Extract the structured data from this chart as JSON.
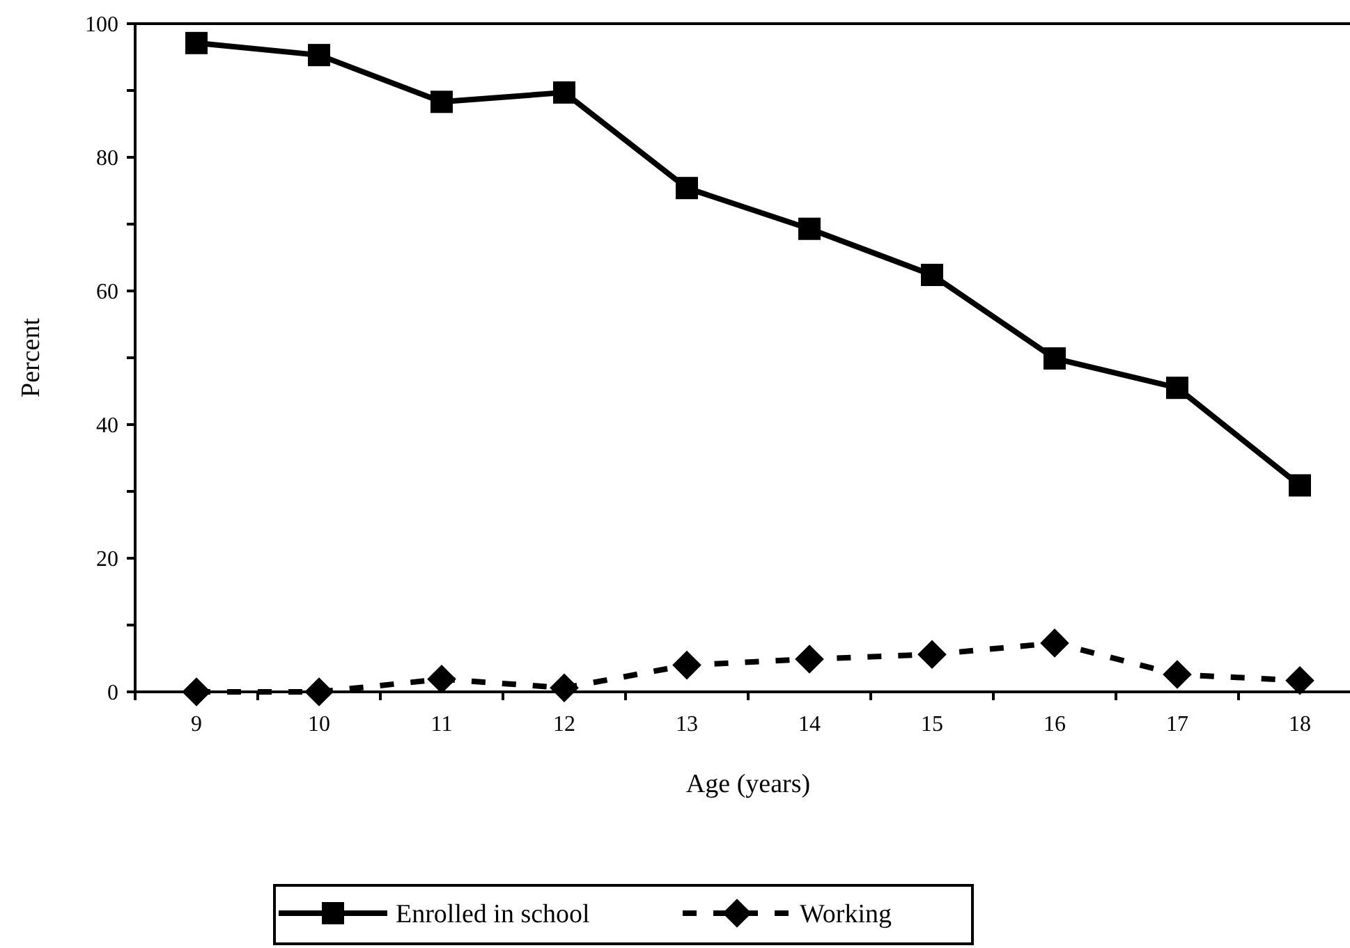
{
  "chart_data": {
    "type": "line",
    "xlabel": "Age (years)",
    "ylabel": "Percent",
    "categories": [
      "9",
      "10",
      "11",
      "12",
      "13",
      "14",
      "15",
      "16",
      "17",
      "18"
    ],
    "series": [
      {
        "name": "Enrolled in school",
        "color": "#000000",
        "marker": "square",
        "line_style": "solid",
        "values": [
          97.1,
          95.3,
          88.3,
          89.7,
          75.4,
          69.3,
          62.4,
          49.9,
          45.5,
          30.9
        ]
      },
      {
        "name": "Working",
        "color": "#000000",
        "marker": "diamond",
        "line_style": "dashed",
        "values": [
          0,
          0,
          1.9,
          0.6,
          4.0,
          4.9,
          5.6,
          7.3,
          2.6,
          1.7
        ]
      }
    ],
    "ylim": [
      0,
      100
    ],
    "yticks": [
      0,
      {
        "value": 10,
        "label": null
      },
      20,
      {
        "value": 30,
        "label": null
      },
      40,
      {
        "value": 50,
        "label": null
      },
      60,
      {
        "value": 70,
        "label": null
      },
      80,
      {
        "value": 90,
        "label": null
      },
      100
    ],
    "grid": false,
    "legend": "bottom"
  }
}
